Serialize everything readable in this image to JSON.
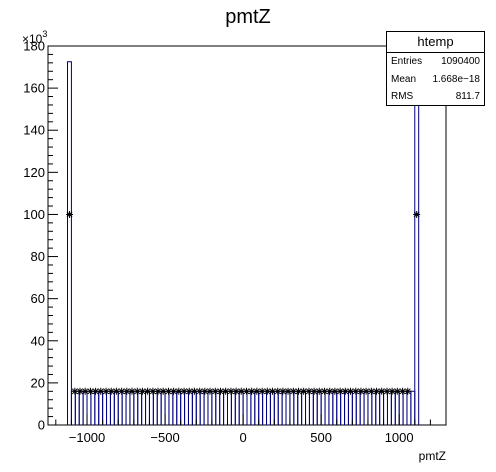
{
  "chart_data": {
    "type": "bar",
    "title": "pmtZ",
    "xlabel": "pmtZ",
    "ylabel": "",
    "y_multiplier_label": "×10",
    "y_multiplier_exponent": "3",
    "xlim": [
      -1250,
      1300
    ],
    "ylim": [
      0,
      180
    ],
    "x_ticks": [
      -1000,
      -500,
      0,
      500,
      1000
    ],
    "x_tick_labels": [
      "−1000",
      "−500",
      "0",
      "500",
      "1000"
    ],
    "y_ticks": [
      0,
      20,
      40,
      60,
      80,
      100,
      120,
      140,
      160,
      180
    ],
    "y_tick_labels": [
      "0",
      "20",
      "40",
      "60",
      "80",
      "100",
      "120",
      "140",
      "160",
      "180"
    ],
    "histogram": {
      "bin_edges_start": -1125,
      "bin_width": 25,
      "n_bins": 90,
      "values": [
        172.5,
        16,
        16,
        16,
        16,
        16,
        16,
        16,
        16,
        16,
        16,
        16,
        16,
        16,
        16,
        16,
        16,
        16,
        16,
        16,
        16,
        16,
        16,
        16,
        16,
        16,
        16,
        16,
        16,
        16,
        16,
        16,
        16,
        16,
        16,
        16,
        16,
        16,
        16,
        16,
        16,
        16,
        16,
        16,
        16,
        16,
        16,
        16,
        16,
        16,
        16,
        16,
        16,
        16,
        16,
        16,
        16,
        16,
        16,
        16,
        16,
        16,
        16,
        16,
        16,
        16,
        16,
        16,
        16,
        16,
        16,
        16,
        16,
        16,
        16,
        16,
        16,
        16,
        16,
        16,
        16,
        16,
        16,
        16,
        16,
        16,
        16,
        16,
        16,
        172.5
      ]
    },
    "markers": {
      "x": [
        -1112,
        -1078,
        -1045,
        -1012,
        -978,
        -945,
        -912,
        -878,
        -845,
        -812,
        -778,
        -745,
        -712,
        -678,
        -645,
        -612,
        -578,
        -545,
        -512,
        -478,
        -445,
        -412,
        -378,
        -345,
        -312,
        -278,
        -245,
        -212,
        -178,
        -145,
        -112,
        -78,
        -45,
        -12,
        22,
        55,
        88,
        122,
        155,
        188,
        222,
        255,
        288,
        322,
        355,
        388,
        422,
        455,
        488,
        522,
        555,
        588,
        622,
        655,
        688,
        722,
        755,
        788,
        822,
        855,
        888,
        922,
        955,
        988,
        1022,
        1055,
        1112
      ],
      "y": [
        100,
        16,
        16,
        16,
        16,
        16,
        16,
        16,
        16,
        16,
        16,
        16,
        16,
        16,
        16,
        16,
        16,
        16,
        16,
        16,
        16,
        16,
        16,
        16,
        16,
        16,
        16,
        16,
        16,
        16,
        16,
        16,
        16,
        16,
        16,
        16,
        16,
        16,
        16,
        16,
        16,
        16,
        16,
        16,
        16,
        16,
        16,
        16,
        16,
        16,
        16,
        16,
        16,
        16,
        16,
        16,
        16,
        16,
        16,
        16,
        16,
        16,
        16,
        16,
        16,
        16,
        100
      ]
    },
    "colors": {
      "bar": "#000080",
      "axis": "#000000",
      "marker": "#000000"
    },
    "grid": false,
    "legend": "top-right stats box"
  },
  "stats_box": {
    "title": "htemp",
    "rows": [
      {
        "label": "Entries",
        "value": "1090400"
      },
      {
        "label": "Mean",
        "value": "1.668e−18"
      },
      {
        "label": "RMS",
        "value": "811.7"
      }
    ]
  }
}
